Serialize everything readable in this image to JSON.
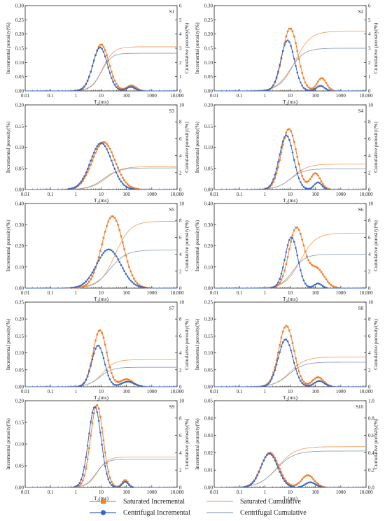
{
  "legend": {
    "items": [
      {
        "label": "Saturated Incremental",
        "kind": "marker-line",
        "marker": "square",
        "color": "#F07F2A"
      },
      {
        "label": "Saturated Cumulative",
        "kind": "line",
        "color": "#F4A460"
      },
      {
        "label": "Centrifugal Incremental",
        "kind": "marker-line",
        "marker": "circle",
        "color": "#3A66C4"
      },
      {
        "label": "Centrifugal Cumulative",
        "kind": "line",
        "color": "#8EA3BF"
      }
    ]
  },
  "colors": {
    "saturated_incremental": "#F07F2A",
    "saturated_cumulative": "#F4A460",
    "centrifugal_incremental": "#3A66C4",
    "centrifugal_cumulative": "#8EA3BF",
    "gray_cumulative": "#9A9A9A"
  },
  "chart_data": [
    {
      "type": "line",
      "label": "S1",
      "xlabel": "T₂(ms)",
      "ylabel": "Incremental porosity(%)",
      "y2label": "Cumulative porosity(%)",
      "x_scale": "log",
      "xlim": [
        0.01,
        10000
      ],
      "x_ticks": [
        "0.01",
        "0.1",
        "1",
        "10",
        "100",
        "1000",
        "10,000"
      ],
      "ylim": [
        0,
        0.3
      ],
      "y_ticks": [
        "0.00",
        "0.05",
        "0.10",
        "0.15",
        "0.20",
        "0.25",
        "0.30"
      ],
      "y2lim": [
        0,
        6
      ],
      "y2_ticks": [
        "0",
        "1",
        "2",
        "3",
        "4",
        "5",
        "6"
      ],
      "series": [
        {
          "name": "Saturated Incremental",
          "peaks": [
            [
              0.163,
              1.0,
              0.31
            ],
            [
              0.019,
              2.2,
              0.18
            ]
          ]
        },
        {
          "name": "Centrifugal Incremental",
          "peaks": [
            [
              0.153,
              0.96,
              0.29
            ],
            [
              0.014,
              2.17,
              0.17
            ]
          ]
        },
        {
          "name": "Saturated Cumulative",
          "final": 3.1,
          "mid": 1.05,
          "width": 0.22
        },
        {
          "name": "Centrifugal Cumulative",
          "final": 2.65,
          "mid": 1.0,
          "width": 0.2
        }
      ]
    },
    {
      "type": "line",
      "label": "S2",
      "xlabel": "T₂(ms)",
      "ylabel": "Incremental porosity(%)",
      "y2label": "Cumulative porosity(%)",
      "x_scale": "log",
      "xlim": [
        0.01,
        10000
      ],
      "x_ticks": [
        "0.01",
        "0.1",
        "1",
        "10",
        "100",
        "1000",
        "10,000"
      ],
      "ylim": [
        0,
        0.3
      ],
      "y_ticks": [
        "0.00",
        "0.05",
        "0.10",
        "0.15",
        "0.20",
        "0.25",
        "0.30"
      ],
      "y2lim": [
        0,
        6
      ],
      "y2_ticks": [
        "0",
        "1",
        "2",
        "3",
        "4",
        "5",
        "6"
      ],
      "series": [
        {
          "name": "Saturated Incremental",
          "peaks": [
            [
              0.22,
              1.0,
              0.3
            ],
            [
              0.045,
              2.25,
              0.18
            ]
          ]
        },
        {
          "name": "Centrifugal Incremental",
          "peaks": [
            [
              0.178,
              0.9,
              0.27
            ],
            [
              0.018,
              2.2,
              0.16
            ]
          ]
        },
        {
          "name": "Saturated Cumulative",
          "final": 4.2,
          "mid": 1.2,
          "width": 0.3
        },
        {
          "name": "Centrifugal Cumulative",
          "final": 3.0,
          "mid": 1.0,
          "width": 0.28
        }
      ]
    },
    {
      "type": "line",
      "label": "S3",
      "xlabel": "T₂(ms)",
      "ylabel": "Incremental porosity(%)",
      "y2label": "Cumulative porosity(%)",
      "x_scale": "log",
      "xlim": [
        0.01,
        10000
      ],
      "x_ticks": [
        "0.01",
        "0.1",
        "1",
        "10",
        "100",
        "1000",
        "10,000"
      ],
      "ylim": [
        0,
        0.2
      ],
      "y_ticks": [
        "0.00",
        "0.05",
        "0.10",
        "0.15",
        "0.20"
      ],
      "y2lim": [
        0,
        10
      ],
      "y2_ticks": [
        "0",
        "2",
        "4",
        "6",
        "8",
        "10"
      ],
      "series": [
        {
          "name": "Saturated Incremental",
          "peaks": [
            [
              0.112,
              1.1,
              0.45
            ]
          ]
        },
        {
          "name": "Centrifugal Incremental",
          "peaks": [
            [
              0.11,
              1.0,
              0.42
            ]
          ]
        },
        {
          "name": "Saturated Cumulative",
          "final": 2.7,
          "mid": 1.2,
          "width": 0.3
        },
        {
          "name": "Centrifugal Cumulative",
          "final": 2.55,
          "mid": 1.1,
          "width": 0.3
        }
      ]
    },
    {
      "type": "line",
      "label": "S4",
      "xlabel": "T₂(ms)",
      "ylabel": "Incremental porosity(%)",
      "y2label": "Cumulative porosity(%)",
      "x_scale": "log",
      "xlim": [
        0.01,
        10000
      ],
      "x_ticks": [
        "0.01",
        "0.1",
        "1",
        "10",
        "100",
        "1000",
        "10,000"
      ],
      "ylim": [
        0,
        0.2
      ],
      "y_ticks": [
        "0.00",
        "0.05",
        "0.10",
        "0.15",
        "0.20"
      ],
      "y2lim": [
        0,
        10
      ],
      "y2_ticks": [
        "0",
        "2",
        "4",
        "6",
        "8",
        "10"
      ],
      "series": [
        {
          "name": "Saturated Incremental",
          "peaks": [
            [
              0.143,
              0.95,
              0.3
            ],
            [
              0.038,
              2.0,
              0.2
            ]
          ]
        },
        {
          "name": "Centrifugal Incremental",
          "peaks": [
            [
              0.128,
              0.85,
              0.28
            ],
            [
              0.017,
              2.1,
              0.15
            ]
          ]
        },
        {
          "name": "Saturated Cumulative",
          "final": 3.0,
          "mid": 1.1,
          "width": 0.3
        },
        {
          "name": "Centrifugal Cumulative",
          "final": 2.45,
          "mid": 1.0,
          "width": 0.28
        }
      ]
    },
    {
      "type": "line",
      "label": "S5",
      "xlabel": "T₂(ms)",
      "ylabel": "Incremental porosity(%)",
      "y2label": "Cumulative porosity(%)",
      "x_scale": "log",
      "xlim": [
        0.01,
        10000
      ],
      "x_ticks": [
        "0.01",
        "0.1",
        "1",
        "10",
        "100",
        "1000",
        "10,000"
      ],
      "ylim": [
        0,
        0.4
      ],
      "y_ticks": [
        "0.00",
        "0.10",
        "0.20",
        "0.30",
        "0.40"
      ],
      "y2lim": [
        0,
        10
      ],
      "y2_ticks": [
        "0",
        "2",
        "4",
        "6",
        "8",
        "10"
      ],
      "series": [
        {
          "name": "Saturated Incremental",
          "peaks": [
            [
              0.34,
              1.45,
              0.42
            ]
          ]
        },
        {
          "name": "Centrifugal Incremental",
          "peaks": [
            [
              0.183,
              1.3,
              0.48
            ]
          ]
        },
        {
          "name": "Saturated Cumulative",
          "final": 7.9,
          "mid": 1.55,
          "width": 0.3
        },
        {
          "name": "Centrifugal Cumulative",
          "final": 4.5,
          "mid": 1.35,
          "width": 0.32
        }
      ]
    },
    {
      "type": "line",
      "label": "S6",
      "xlabel": "T₂(ms)",
      "ylabel": "Incremental porosity(%)",
      "y2label": "Cumulative porosity(%)",
      "x_scale": "log",
      "xlim": [
        0.01,
        10000
      ],
      "x_ticks": [
        "0.01",
        "0.1",
        "1",
        "10",
        "100",
        "1000",
        "10,000"
      ],
      "ylim": [
        0,
        0.4
      ],
      "y_ticks": [
        "0.00",
        "0.10",
        "0.20",
        "0.30",
        "0.40"
      ],
      "y2lim": [
        0,
        10
      ],
      "y2_ticks": [
        "0",
        "2",
        "4",
        "6",
        "8",
        "10"
      ],
      "series": [
        {
          "name": "Saturated Incremental",
          "peaks": [
            [
              0.285,
              1.25,
              0.3
            ],
            [
              0.09,
              2.05,
              0.3
            ]
          ]
        },
        {
          "name": "Centrifugal Incremental",
          "peaks": [
            [
              0.24,
              1.05,
              0.25
            ],
            [
              0.022,
              2.1,
              0.15
            ]
          ]
        },
        {
          "name": "Saturated Cumulative",
          "final": 6.5,
          "mid": 1.4,
          "width": 0.3
        },
        {
          "name": "Centrifugal Cumulative",
          "final": 4.0,
          "mid": 1.1,
          "width": 0.25
        }
      ]
    },
    {
      "type": "line",
      "label": "S7",
      "xlabel": "T₂(ms)",
      "ylabel": "Incremental porosity(%)",
      "y2label": "Cumulative porosity(%)",
      "x_scale": "log",
      "xlim": [
        0.01,
        10000
      ],
      "x_ticks": [
        "0.01",
        "0.1",
        "1",
        "10",
        "100",
        "1000",
        "10,000"
      ],
      "ylim": [
        0,
        0.25
      ],
      "y_ticks": [
        "0.00",
        "0.05",
        "0.10",
        "0.15",
        "0.20",
        "0.25"
      ],
      "y2lim": [
        0,
        10
      ],
      "y2_ticks": [
        "0",
        "2",
        "4",
        "6",
        "8",
        "10"
      ],
      "series": [
        {
          "name": "Saturated Incremental",
          "peaks": [
            [
              0.167,
              0.95,
              0.27
            ],
            [
              0.022,
              2.0,
              0.25
            ]
          ]
        },
        {
          "name": "Centrifugal Incremental",
          "peaks": [
            [
              0.122,
              0.88,
              0.25
            ],
            [
              0.015,
              2.05,
              0.25
            ]
          ]
        },
        {
          "name": "Saturated Cumulative",
          "final": 3.2,
          "mid": 1.05,
          "width": 0.25
        },
        {
          "name": "Centrifugal Cumulative",
          "final": 2.3,
          "mid": 0.95,
          "width": 0.25
        }
      ]
    },
    {
      "type": "line",
      "label": "S8",
      "xlabel": "T₂(ms)",
      "ylabel": "Incremental porosity(%)",
      "y2label": "Cumulative porosity(%)",
      "x_scale": "log",
      "xlim": [
        0.01,
        10000
      ],
      "x_ticks": [
        "0.01",
        "0.1",
        "1",
        "10",
        "100",
        "1000",
        "10,000"
      ],
      "ylim": [
        0,
        0.25
      ],
      "y_ticks": [
        "0.00",
        "0.05",
        "0.10",
        "0.15",
        "0.20",
        "0.25"
      ],
      "y2lim": [
        0,
        10
      ],
      "y2_ticks": [
        "0",
        "2",
        "4",
        "6",
        "8",
        "10"
      ],
      "series": [
        {
          "name": "Saturated Incremental",
          "peaks": [
            [
              0.18,
              0.85,
              0.3
            ],
            [
              0.028,
              2.1,
              0.22
            ]
          ]
        },
        {
          "name": "Centrifugal Incremental",
          "peaks": [
            [
              0.14,
              0.82,
              0.29
            ],
            [
              0.017,
              2.15,
              0.2
            ]
          ]
        },
        {
          "name": "Saturated Cumulative",
          "final": 3.5,
          "mid": 1.0,
          "width": 0.3
        },
        {
          "name": "Centrifugal Cumulative",
          "final": 2.9,
          "mid": 0.95,
          "width": 0.3
        }
      ]
    },
    {
      "type": "line",
      "label": "S9",
      "xlabel": "T₂(ms)",
      "ylabel": "Incremental porosity(%)",
      "y2label": "Cumulative porosity(%)",
      "x_scale": "log",
      "xlim": [
        0.01,
        10000
      ],
      "x_ticks": [
        "0.01",
        "0.1",
        "1",
        "10",
        "100",
        "1000",
        "10,000"
      ],
      "ylim": [
        0,
        0.2
      ],
      "y_ticks": [
        "0.00",
        "0.05",
        "0.10",
        "0.15",
        "0.20"
      ],
      "y2lim": [
        0,
        10
      ],
      "y2_ticks": [
        "0",
        "2",
        "4",
        "6",
        "8",
        "10"
      ],
      "series": [
        {
          "name": "Saturated Incremental",
          "peaks": [
            [
              0.19,
              0.83,
              0.25
            ],
            [
              0.017,
              1.95,
              0.12
            ]
          ]
        },
        {
          "name": "Centrifugal Incremental",
          "peaks": [
            [
              0.186,
              0.75,
              0.25
            ],
            [
              0.013,
              1.95,
              0.12
            ]
          ]
        },
        {
          "name": "Saturated Cumulative",
          "final": 3.5,
          "mid": 0.85,
          "width": 0.2
        },
        {
          "name": "Centrifugal Cumulative",
          "final": 3.25,
          "mid": 0.8,
          "width": 0.2
        }
      ]
    },
    {
      "type": "line",
      "label": "S10",
      "xlabel": "T₂(ms)",
      "ylabel": "Incremental porosity(%)",
      "y2label": "Cumulative porosity(%)",
      "x_scale": "log",
      "xlim": [
        0.01,
        10000
      ],
      "x_ticks": [
        "0.01",
        "0.1",
        "1",
        "10",
        "100",
        "1000",
        "10,000"
      ],
      "ylim": [
        0,
        0.05
      ],
      "y_ticks": [
        "0.00",
        "0.01",
        "0.02",
        "0.03",
        "0.04",
        "0.05"
      ],
      "y2lim": [
        0,
        1.0
      ],
      "y2_ticks": [
        "0.0",
        "0.2",
        "0.4",
        "0.6",
        "0.8",
        "1.0"
      ],
      "series": [
        {
          "name": "Saturated Incremental",
          "peaks": [
            [
              0.02,
              0.2,
              0.35
            ],
            [
              0.007,
              1.7,
              0.25
            ]
          ]
        },
        {
          "name": "Centrifugal Incremental",
          "peaks": [
            [
              0.0195,
              0.18,
              0.33
            ],
            [
              0.003,
              1.8,
              0.2
            ]
          ]
        },
        {
          "name": "Saturated Cumulative",
          "final": 0.47,
          "mid": 0.5,
          "width": 0.35
        },
        {
          "name": "Centrifugal Cumulative",
          "final": 0.42,
          "mid": 0.45,
          "width": 0.35
        }
      ]
    }
  ]
}
